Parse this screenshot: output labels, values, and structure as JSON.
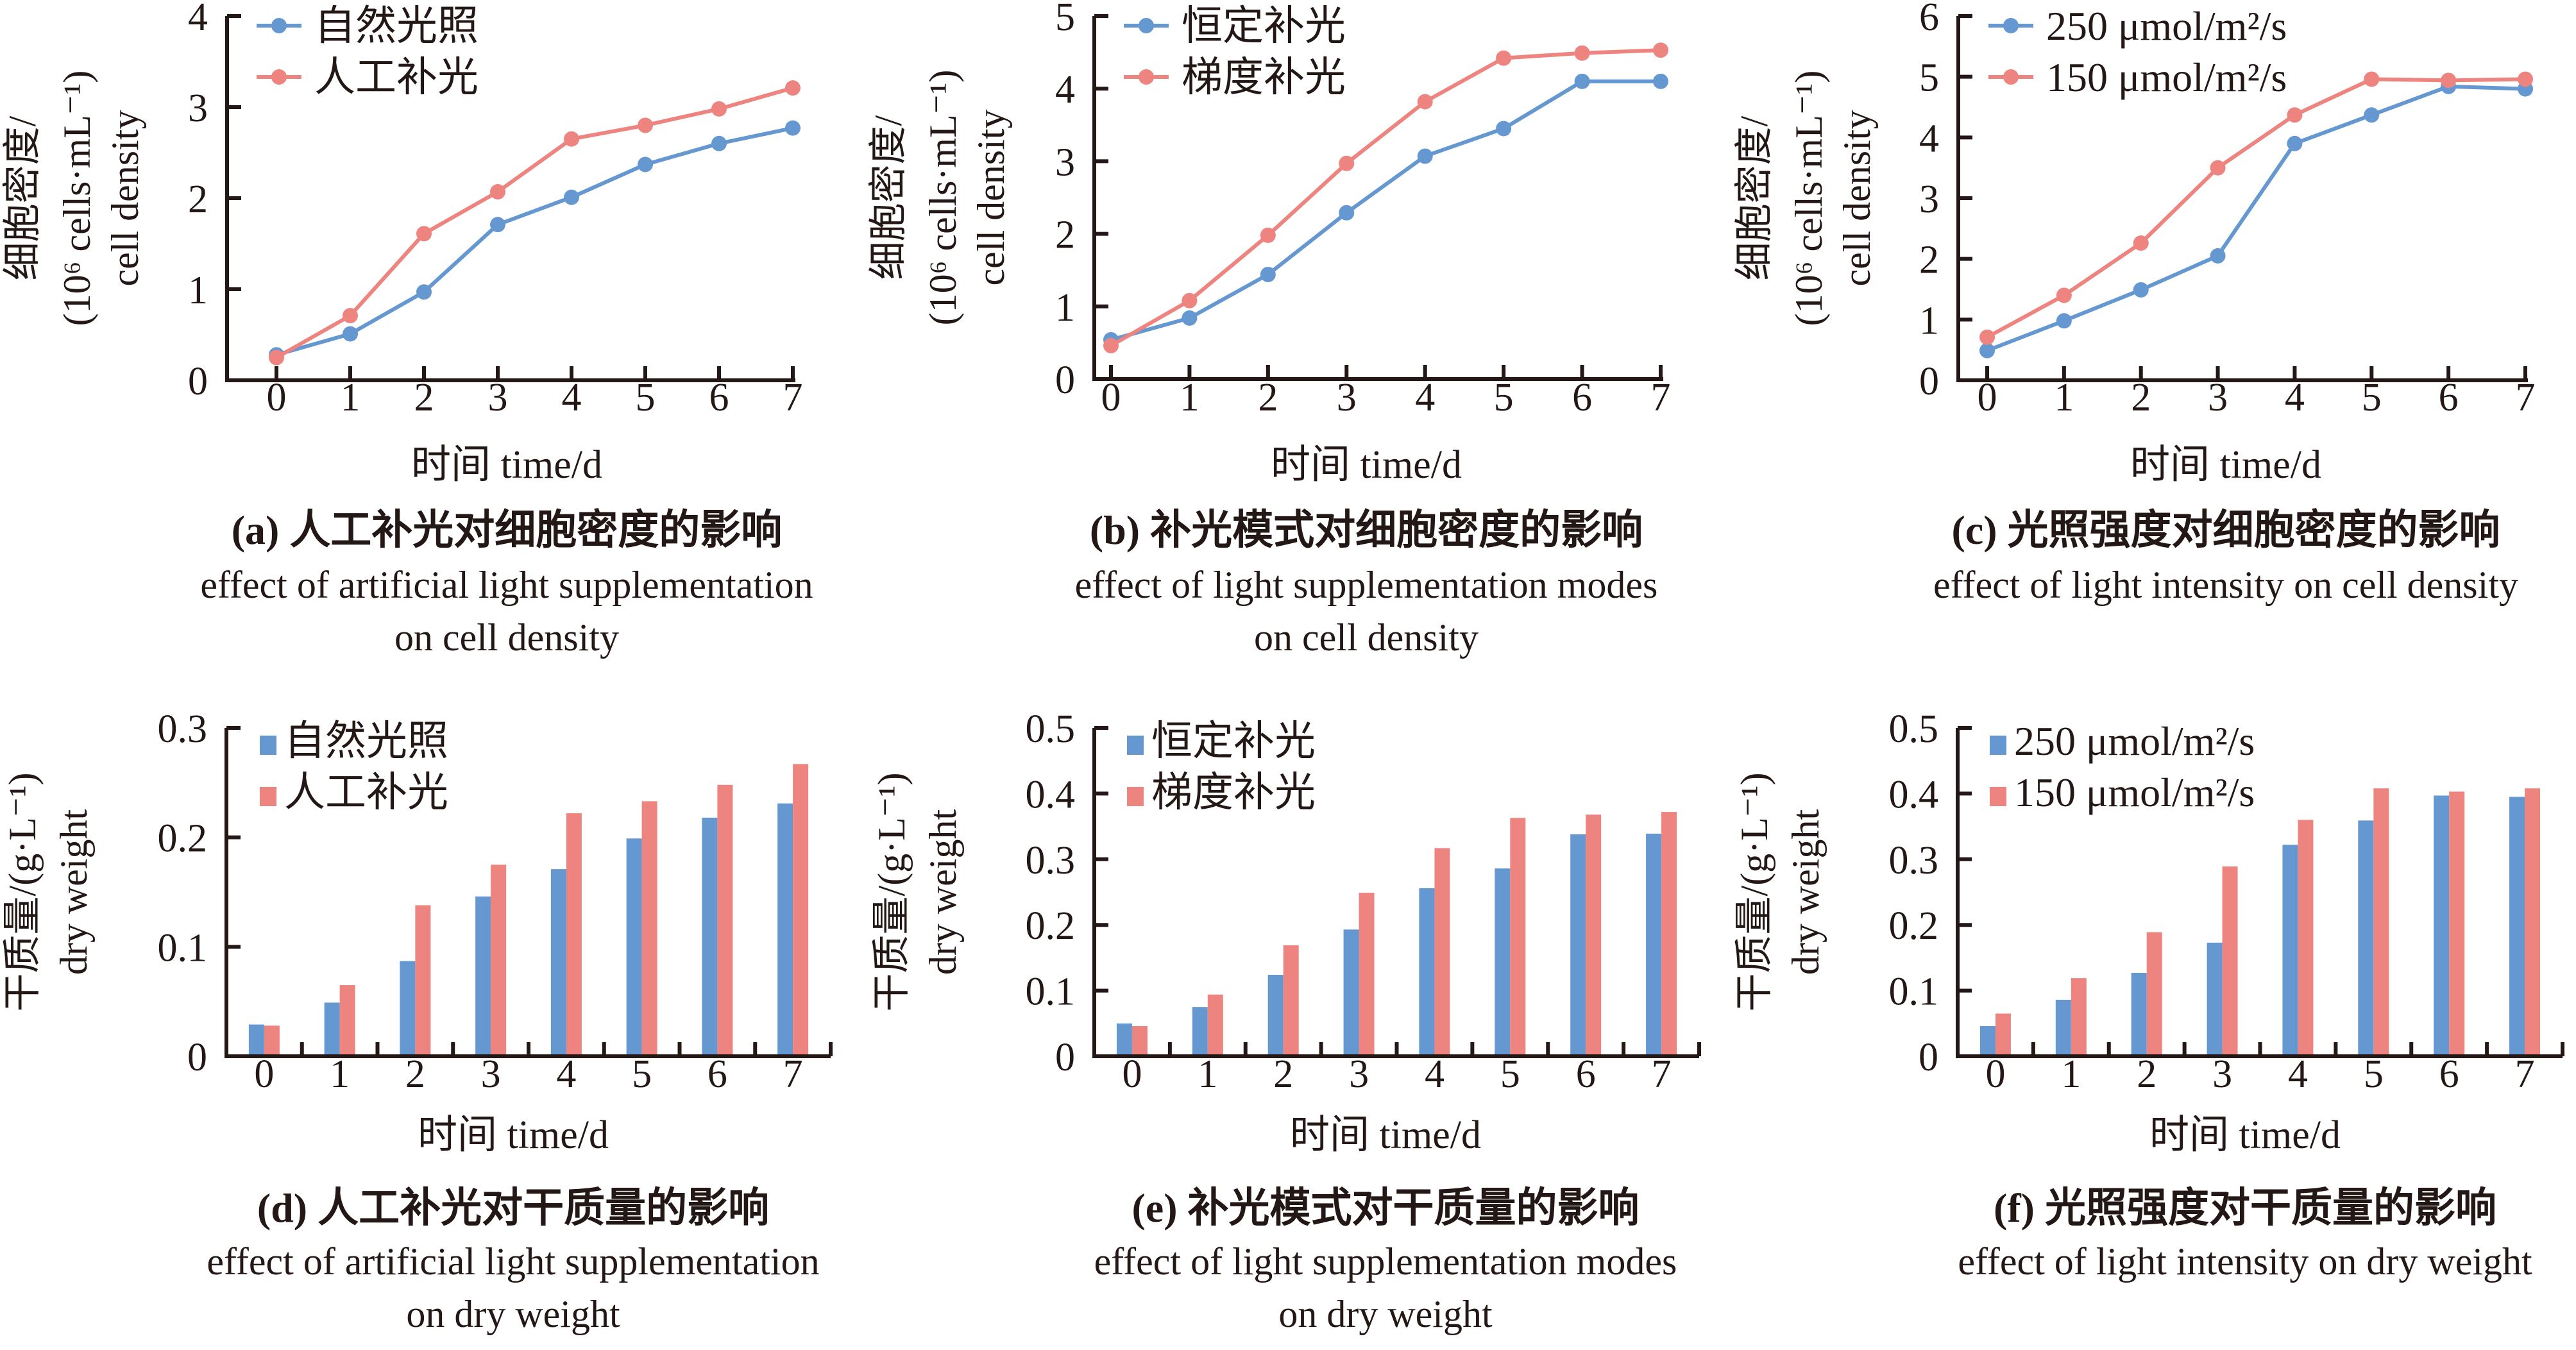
{
  "colors": {
    "series_a": "#6598D1",
    "series_b": "#EE8480",
    "axis": "#231815"
  },
  "chart_data": [
    {
      "id": "a",
      "type": "line",
      "x": [
        0,
        1,
        2,
        3,
        4,
        5,
        6,
        7
      ],
      "xticks": [
        "0",
        "1",
        "2",
        "3",
        "4",
        "5",
        "6",
        "7"
      ],
      "xlabel": "时间 time/d",
      "ylabel_lines": [
        "细胞密度/",
        "(10⁶ cells·mL⁻¹)",
        "cell density"
      ],
      "ylim": [
        0,
        4
      ],
      "yticks": [
        "0",
        "1",
        "2",
        "3",
        "4"
      ],
      "ytick_values": [
        0,
        1,
        2,
        3,
        4
      ],
      "legend": "top-left",
      "series": [
        {
          "name": "自然光照",
          "values": [
            0.28,
            0.51,
            0.97,
            1.71,
            2.01,
            2.37,
            2.6,
            2.77
          ]
        },
        {
          "name": "人工补光",
          "values": [
            0.25,
            0.71,
            1.61,
            2.07,
            2.65,
            2.8,
            2.98,
            3.21
          ]
        }
      ],
      "caption_cn": "(a) 人工补光对细胞密度的影响",
      "caption_en": [
        "effect of artificial light supplementation",
        "on cell density"
      ]
    },
    {
      "id": "b",
      "type": "line",
      "x": [
        0,
        1,
        2,
        3,
        4,
        5,
        6,
        7
      ],
      "xticks": [
        "0",
        "1",
        "2",
        "3",
        "4",
        "5",
        "6",
        "7"
      ],
      "xlabel": "时间 time/d",
      "ylabel_lines": [
        "细胞密度/",
        "(10⁶ cells·mL⁻¹)",
        "cell density"
      ],
      "ylim": [
        0,
        5
      ],
      "yticks": [
        "0",
        "1",
        "2",
        "3",
        "4",
        "5"
      ],
      "ytick_values": [
        0,
        1,
        2,
        3,
        4,
        5
      ],
      "legend": "top-left",
      "series": [
        {
          "name": "恒定补光",
          "values": [
            0.54,
            0.84,
            1.44,
            2.29,
            3.07,
            3.45,
            4.1,
            4.1
          ]
        },
        {
          "name": "梯度补光",
          "values": [
            0.46,
            1.08,
            1.98,
            2.97,
            3.82,
            4.42,
            4.49,
            4.53
          ]
        }
      ],
      "caption_cn": "(b) 补光模式对细胞密度的影响",
      "caption_en": [
        "effect of light supplementation modes",
        "on cell density"
      ]
    },
    {
      "id": "c",
      "type": "line",
      "x": [
        0,
        1,
        2,
        3,
        4,
        5,
        6,
        7
      ],
      "xticks": [
        "0",
        "1",
        "2",
        "3",
        "4",
        "5",
        "6",
        "7"
      ],
      "xlabel": "时间 time/d",
      "ylabel_lines": [
        "细胞密度/",
        "(10⁶ cells·mL⁻¹)",
        "cell density"
      ],
      "ylim": [
        0,
        6
      ],
      "yticks": [
        "0",
        "1",
        "2",
        "3",
        "4",
        "5",
        "6"
      ],
      "ytick_values": [
        0,
        1,
        2,
        3,
        4,
        5,
        6
      ],
      "legend": "top-left",
      "series": [
        {
          "name": "250 μmol/m²/s",
          "values": [
            0.49,
            0.98,
            1.49,
            2.05,
            3.9,
            4.37,
            4.84,
            4.8
          ]
        },
        {
          "name": "150 μmol/m²/s",
          "values": [
            0.71,
            1.4,
            2.26,
            3.5,
            4.37,
            4.96,
            4.94,
            4.96
          ]
        }
      ],
      "caption_cn": "(c) 光照强度对细胞密度的影响",
      "caption_en": [
        "effect of light intensity on cell density"
      ]
    },
    {
      "id": "d",
      "type": "bar",
      "categories": [
        "0",
        "1",
        "2",
        "3",
        "4",
        "5",
        "6",
        "7"
      ],
      "xlabel": "时间 time/d",
      "ylabel_lines": [
        "干质量/(g·L⁻¹)",
        "dry weight"
      ],
      "ylim": [
        0,
        0.3
      ],
      "yticks": [
        "0",
        "0.1",
        "0.2",
        "0.3"
      ],
      "ytick_values": [
        0,
        0.1,
        0.2,
        0.3
      ],
      "legend": "top-left",
      "series": [
        {
          "name": "自然光照",
          "values": [
            0.029,
            0.049,
            0.087,
            0.146,
            0.171,
            0.199,
            0.218,
            0.231
          ]
        },
        {
          "name": "人工补光",
          "values": [
            0.028,
            0.065,
            0.138,
            0.175,
            0.222,
            0.233,
            0.248,
            0.267
          ]
        }
      ],
      "caption_cn": "(d) 人工补光对干质量的影响",
      "caption_en": [
        "effect of artificial light supplementation",
        "on dry weight"
      ]
    },
    {
      "id": "e",
      "type": "bar",
      "categories": [
        "0",
        "1",
        "2",
        "3",
        "4",
        "5",
        "6",
        "7"
      ],
      "xlabel": "时间 time/d",
      "ylabel_lines": [
        "干质量/(g·L⁻¹)",
        "dry weight"
      ],
      "ylim": [
        0,
        0.5
      ],
      "yticks": [
        "0",
        "0.1",
        "0.2",
        "0.3",
        "0.4",
        "0.5"
      ],
      "ytick_values": [
        0,
        0.1,
        0.2,
        0.3,
        0.4,
        0.5
      ],
      "legend": "top-left",
      "series": [
        {
          "name": "恒定补光",
          "values": [
            0.05,
            0.075,
            0.124,
            0.193,
            0.256,
            0.286,
            0.338,
            0.339
          ]
        },
        {
          "name": "梯度补光",
          "values": [
            0.046,
            0.094,
            0.169,
            0.249,
            0.317,
            0.363,
            0.368,
            0.372
          ]
        }
      ],
      "caption_cn": "(e) 补光模式对干质量的影响",
      "caption_en": [
        "effect of light supplementation modes",
        "on dry weight"
      ]
    },
    {
      "id": "f",
      "type": "bar",
      "categories": [
        "0",
        "1",
        "2",
        "3",
        "4",
        "5",
        "6",
        "7"
      ],
      "xlabel": "时间 time/d",
      "ylabel_lines": [
        "干质量/(g·L⁻¹)",
        "dry weight"
      ],
      "ylim": [
        0,
        0.5
      ],
      "yticks": [
        "0",
        "0.1",
        "0.2",
        "0.3",
        "0.4",
        "0.5"
      ],
      "ytick_values": [
        0,
        0.1,
        0.2,
        0.3,
        0.4,
        0.5
      ],
      "legend": "top-left",
      "series": [
        {
          "name": "250 μmol/m²/s",
          "values": [
            0.046,
            0.086,
            0.127,
            0.173,
            0.322,
            0.359,
            0.397,
            0.395
          ]
        },
        {
          "name": "150 μmol/m²/s",
          "values": [
            0.065,
            0.119,
            0.189,
            0.289,
            0.36,
            0.408,
            0.403,
            0.408
          ]
        }
      ],
      "caption_cn": "(f) 光照强度对干质量的影响",
      "caption_en": [
        "effect of light intensity on dry weight"
      ]
    }
  ]
}
